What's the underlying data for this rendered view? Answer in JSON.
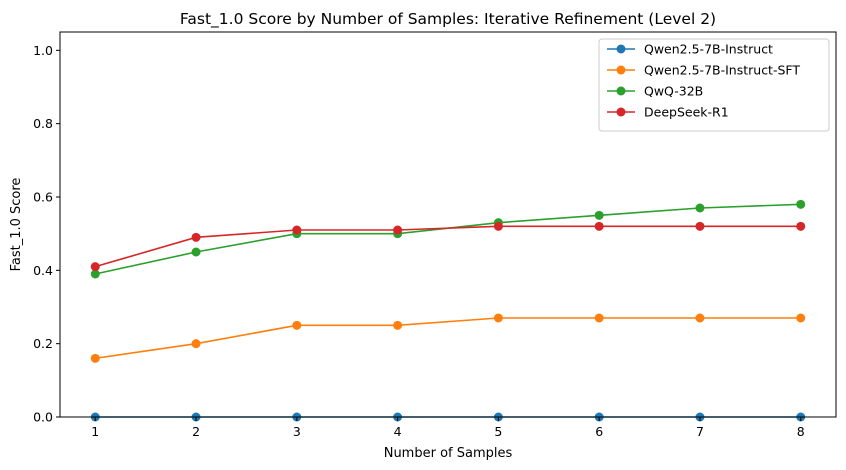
{
  "chart_data": {
    "type": "line",
    "title": "Fast_1.0 Score by Number of Samples: Iterative Refinement (Level 2)",
    "xlabel": "Number of Samples",
    "ylabel": "Fast_1.0 Score",
    "x": [
      1,
      2,
      3,
      4,
      5,
      6,
      7,
      8
    ],
    "xlim": [
      0.65,
      8.35
    ],
    "ylim": [
      0,
      1.05
    ],
    "xticks": [
      "1",
      "2",
      "3",
      "4",
      "5",
      "6",
      "7",
      "8"
    ],
    "yticks": [
      "0.0",
      "0.2",
      "0.4",
      "0.6",
      "0.8",
      "1.0"
    ],
    "grid": false,
    "legend_position": "top-right",
    "series": [
      {
        "name": "Qwen2.5-7B-Instruct",
        "color": "#1f77b4",
        "values": [
          0,
          0,
          0,
          0,
          0,
          0,
          0,
          0
        ]
      },
      {
        "name": "Qwen2.5-7B-Instruct-SFT",
        "color": "#ff7f0e",
        "values": [
          0.16,
          0.2,
          0.25,
          0.25,
          0.27,
          0.27,
          0.27,
          0.27
        ]
      },
      {
        "name": "QwQ-32B",
        "color": "#2ca02c",
        "values": [
          0.39,
          0.45,
          0.5,
          0.5,
          0.53,
          0.55,
          0.57,
          0.58
        ]
      },
      {
        "name": "DeepSeek-R1",
        "color": "#d62728",
        "values": [
          0.41,
          0.49,
          0.51,
          0.51,
          0.52,
          0.52,
          0.52,
          0.52
        ]
      }
    ]
  }
}
